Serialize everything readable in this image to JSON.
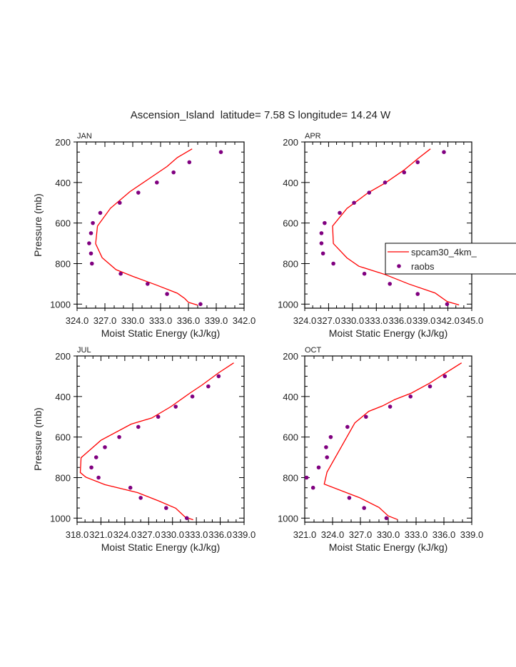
{
  "chart_data": {
    "type": "line",
    "title": "Ascension_Island  latitude= 7.58 S longitude= 14.24 W",
    "ylabel": "Pressure (mb)",
    "xlabel": "Moist Static Energy (kJ/kg)",
    "ylim": [
      1020,
      200
    ],
    "yticks": [
      "200",
      "400",
      "600",
      "800",
      "1000"
    ],
    "legend": {
      "placement": "right of APR panel",
      "entries": [
        "spcam30_4km_",
        "raobs"
      ]
    },
    "colors": {
      "model": "#ff0000",
      "obs": "#800080"
    },
    "panels": [
      {
        "name": "JAN",
        "xlim": [
          324,
          342
        ],
        "xticks": [
          "324.0",
          "327.0",
          "330.0",
          "333.0",
          "336.0",
          "339.0",
          "342.0"
        ],
        "model": {
          "p": [
            234,
            277,
            321,
            383,
            445,
            527,
            615,
            702,
            771,
            830,
            863,
            905,
            946,
            972,
            991,
            1005
          ],
          "mse": [
            336.4,
            334.8,
            333.7,
            331.7,
            329.7,
            327.6,
            326.2,
            326.0,
            326.7,
            328.2,
            330.0,
            332.5,
            334.8,
            335.6,
            336.0,
            337.0
          ]
        },
        "obs": {
          "p": [
            250,
            300,
            350,
            400,
            450,
            500,
            550,
            600,
            650,
            700,
            750,
            800,
            850,
            900,
            950,
            1000
          ],
          "mse": [
            339.5,
            336.1,
            334.4,
            332.6,
            330.6,
            328.6,
            326.5,
            325.7,
            325.5,
            325.3,
            325.5,
            325.6,
            328.7,
            331.6,
            333.7,
            337.3
          ]
        }
      },
      {
        "name": "APR",
        "xlim": [
          324,
          345
        ],
        "xticks": [
          "324.0",
          "327.0",
          "330.0",
          "333.0",
          "336.0",
          "339.0",
          "342.0",
          "345.0"
        ],
        "model": {
          "p": [
            234,
            283,
            338,
            403,
            450,
            528,
            615,
            701,
            772,
            813,
            854,
            901,
            945,
            987,
            1004
          ],
          "mse": [
            339.8,
            338.2,
            336.5,
            334.1,
            332.0,
            329.3,
            327.5,
            327.6,
            329.3,
            330.8,
            334.1,
            337.1,
            340.4,
            341.9,
            343.4
          ]
        },
        "obs": {
          "p": [
            250,
            300,
            350,
            400,
            450,
            500,
            550,
            600,
            650,
            700,
            750,
            800,
            850,
            900,
            950,
            1000
          ],
          "mse": [
            341.5,
            338.2,
            336.5,
            334.1,
            332.1,
            330.2,
            328.4,
            326.5,
            326.1,
            326.1,
            326.3,
            327.6,
            331.5,
            334.7,
            338.2,
            341.9
          ]
        }
      },
      {
        "name": "JUL",
        "xlim": [
          318,
          339
        ],
        "xticks": [
          "318.0",
          "321.0",
          "324.0",
          "327.0",
          "330.0",
          "333.0",
          "336.0",
          "339.0"
        ],
        "model": {
          "p": [
            234,
            283,
            344,
            383,
            450,
            506,
            536,
            616,
            702,
            775,
            798,
            835,
            874,
            916,
            951,
            995,
            1008
          ],
          "mse": [
            337.7,
            335.8,
            333.7,
            332.2,
            329.8,
            327.4,
            324.8,
            321.0,
            318.5,
            318.4,
            319.1,
            321.5,
            325.6,
            328.3,
            330.4,
            331.6,
            332.6
          ]
        },
        "obs": {
          "p": [
            300,
            350,
            400,
            450,
            500,
            550,
            600,
            650,
            700,
            750,
            800,
            850,
            900,
            950,
            1000
          ],
          "mse": [
            335.8,
            334.5,
            332.5,
            330.4,
            328.2,
            325.7,
            323.3,
            321.5,
            320.4,
            319.8,
            320.7,
            324.7,
            326.0,
            329.2,
            331.8
          ]
        }
      },
      {
        "name": "OCT",
        "xlim": [
          321,
          339
        ],
        "xticks": [
          "321.0",
          "324.0",
          "327.0",
          "330.0",
          "333.0",
          "336.0",
          "339.0"
        ],
        "model": {
          "p": [
            234,
            286,
            333,
            383,
            415,
            446,
            473,
            530,
            773,
            832,
            899,
            947,
            989,
            1007
          ],
          "mse": [
            337.9,
            336.1,
            334.5,
            332.5,
            330.7,
            329.4,
            327.9,
            326.4,
            323.4,
            323.1,
            326.9,
            329.0,
            330.0,
            331.0
          ]
        },
        "obs": {
          "p": [
            300,
            350,
            400,
            450,
            500,
            550,
            600,
            650,
            700,
            750,
            800,
            850,
            900,
            950,
            1000
          ],
          "mse": [
            336.1,
            334.5,
            332.4,
            330.2,
            327.6,
            325.6,
            323.8,
            323.3,
            323.4,
            322.5,
            321.2,
            321.9,
            325.8,
            327.4,
            329.8
          ]
        }
      }
    ]
  }
}
